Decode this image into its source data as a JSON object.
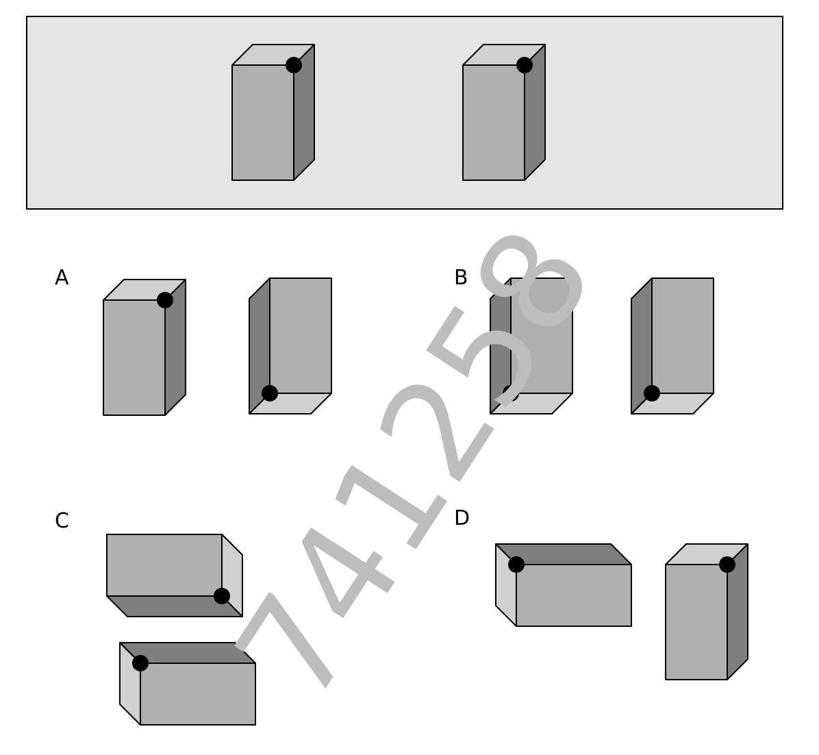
{
  "reference_panel": {
    "background": "#e5e5e5",
    "border": "#000000",
    "boxes": [
      {
        "orientation": "upright",
        "visible_side": "right",
        "marker": "top-right-front"
      },
      {
        "orientation": "upright",
        "visible_side": "right",
        "marker": "top-right-front"
      }
    ]
  },
  "colors": {
    "front_face": "#b0b0b0",
    "dark_face": "#7f7f7f",
    "light_face": "#d0d0d0",
    "edge": "#000000",
    "marker": "#000000"
  },
  "options": [
    {
      "label": "A",
      "boxes": [
        {
          "orientation": "upright",
          "visible_side": "right",
          "marker": "top-right-front"
        },
        {
          "orientation": "upright",
          "visible_side": "left",
          "visible_end": "bottom",
          "marker": "bottom-left-front"
        }
      ]
    },
    {
      "label": "B",
      "boxes": [
        {
          "orientation": "upright",
          "visible_side": "left",
          "visible_end": "bottom",
          "marker": "bottom-left-front"
        },
        {
          "orientation": "upright",
          "visible_side": "left",
          "visible_end": "bottom",
          "marker": "bottom-left-front"
        }
      ]
    },
    {
      "label": "C",
      "boxes": [
        {
          "orientation": "lying",
          "visible_side": "right",
          "visible_end": "bottom",
          "marker": "bottom-right-front"
        },
        {
          "orientation": "lying",
          "visible_side": "left",
          "visible_end": "top",
          "marker": "top-left-front"
        }
      ]
    },
    {
      "label": "D",
      "boxes": [
        {
          "orientation": "lying",
          "visible_side": "left",
          "visible_end": "top",
          "marker": "top-left-front"
        },
        {
          "orientation": "upright",
          "visible_side": "right",
          "marker": "top-right-front"
        }
      ]
    }
  ],
  "watermark": {
    "text": "741258",
    "color": "#bdbdbd"
  }
}
